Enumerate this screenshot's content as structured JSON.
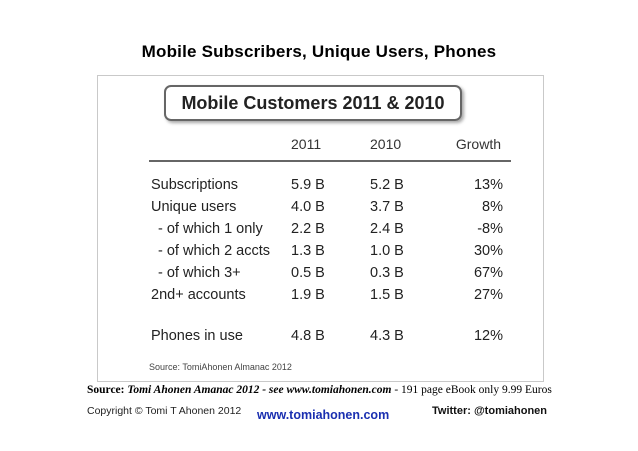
{
  "slide_title": "Mobile Subscribers, Unique Users, Phones",
  "chart_data": {
    "type": "table",
    "title": "Mobile Customers 2011 & 2010",
    "columns": [
      "",
      "2011",
      "2010",
      "Growth"
    ],
    "rows": [
      {
        "label": "Subscriptions",
        "y2011": "5.9 B",
        "y2010": "5.2 B",
        "growth": "13%"
      },
      {
        "label": "Unique users",
        "y2011": "4.0 B",
        "y2010": "3.7 B",
        "growth": "8%"
      },
      {
        "label": "- of which 1 only",
        "y2011": "2.2 B",
        "y2010": "2.4 B",
        "growth": "-8%"
      },
      {
        "label": "- of which 2 accts",
        "y2011": "1.3 B",
        "y2010": "1.0 B",
        "growth": "30%"
      },
      {
        "label": "- of which 3+",
        "y2011": "0.5 B",
        "y2010": "0.3 B",
        "growth": "67%"
      },
      {
        "label": "2nd+ accounts",
        "y2011": "1.9 B",
        "y2010": "1.5 B",
        "growth": "27%"
      },
      {
        "label": "Phones in use",
        "y2011": "4.8 B",
        "y2010": "4.3 B",
        "growth": "12%"
      }
    ],
    "source_note": "Source: TomiAhonen Almanac 2012"
  },
  "footer": {
    "source_bold": "Source: ",
    "source_italic": "Tomi Ahonen Amanac 2012 - see www.tomiahonen.com",
    "source_rest": " - 191 page eBook only 9.99 Euros",
    "copyright": "Copyright © Tomi T Ahonen 2012",
    "website": "www.tomiahonen.com",
    "twitter": "Twitter: @tomiahonen"
  }
}
